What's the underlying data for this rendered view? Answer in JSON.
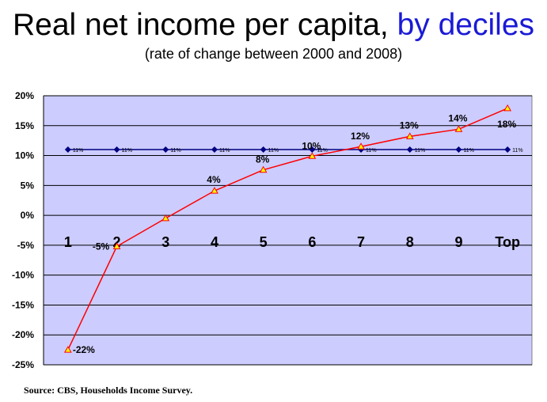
{
  "title_main": "Real net income per capita,",
  "title_highlight": "by deciles",
  "subtitle": "(rate of change between 2000 and 2008)",
  "source": "Source: CBS, Households Income Survey.",
  "colors": {
    "plot_bg": "#ccccff",
    "grid": "#000000",
    "decile_series": "#ff0000",
    "decile_marker": "#ffff00",
    "average_series": "#000080",
    "title_highlight": "#1a1ad6"
  },
  "chart_data": {
    "type": "line",
    "categories": [
      "1",
      "2",
      "3",
      "4",
      "5",
      "6",
      "7",
      "8",
      "9",
      "Top"
    ],
    "series": [
      {
        "values": [
          -22.5,
          -5.2,
          -0.5,
          4.1,
          7.6,
          9.9,
          11.5,
          13.2,
          14.4,
          17.9
        ],
        "labels": [
          "-22%",
          "-5%",
          "",
          "4%",
          "8%",
          "10%",
          "12%",
          "13%",
          "14%",
          "18%"
        ],
        "marker": "triangle"
      },
      {
        "values": [
          11,
          11,
          11,
          11,
          11,
          11,
          11,
          11,
          11,
          11
        ],
        "labels": [
          "11%",
          "11%",
          "11%",
          "11%",
          "11%",
          "11%",
          "11%",
          "11%",
          "11%",
          "11%"
        ],
        "marker": "diamond"
      }
    ],
    "yticks": [
      "20%",
      "15%",
      "10%",
      "5%",
      "0%",
      "-5%",
      "-10%",
      "-15%",
      "-20%",
      "-25%"
    ],
    "ylim": [
      -25,
      20
    ],
    "grid": true,
    "legend": "none"
  }
}
